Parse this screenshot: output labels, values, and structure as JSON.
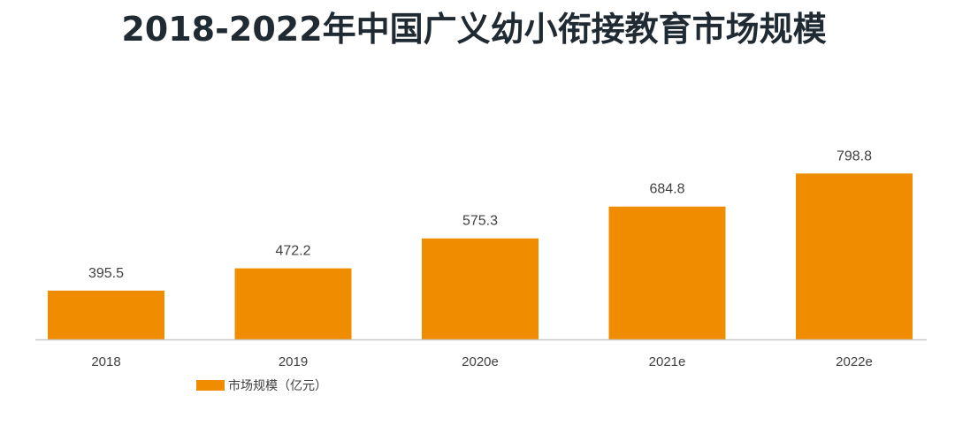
{
  "chart_data": {
    "type": "bar",
    "title": "2018-2022年中国广义幼小衔接教育市场规模",
    "categories": [
      "2018",
      "2019",
      "2020e",
      "2021e",
      "2022e"
    ],
    "series": [
      {
        "name": "市场规模（亿元）",
        "values": [
          395.5,
          472.2,
          575.3,
          684.8,
          798.8
        ]
      }
    ],
    "data_labels": [
      "395.5",
      "472.2",
      "575.3",
      "684.8",
      "798.8"
    ],
    "xlabel": "",
    "ylabel": "",
    "ylim": [
      -800,
      800
    ],
    "grid": false,
    "legend_position": "bottom-left",
    "colors": {
      "bar": "#F08C00",
      "axis": "#C8C8C8",
      "title": "#1F2A33",
      "label": "#404040"
    }
  }
}
